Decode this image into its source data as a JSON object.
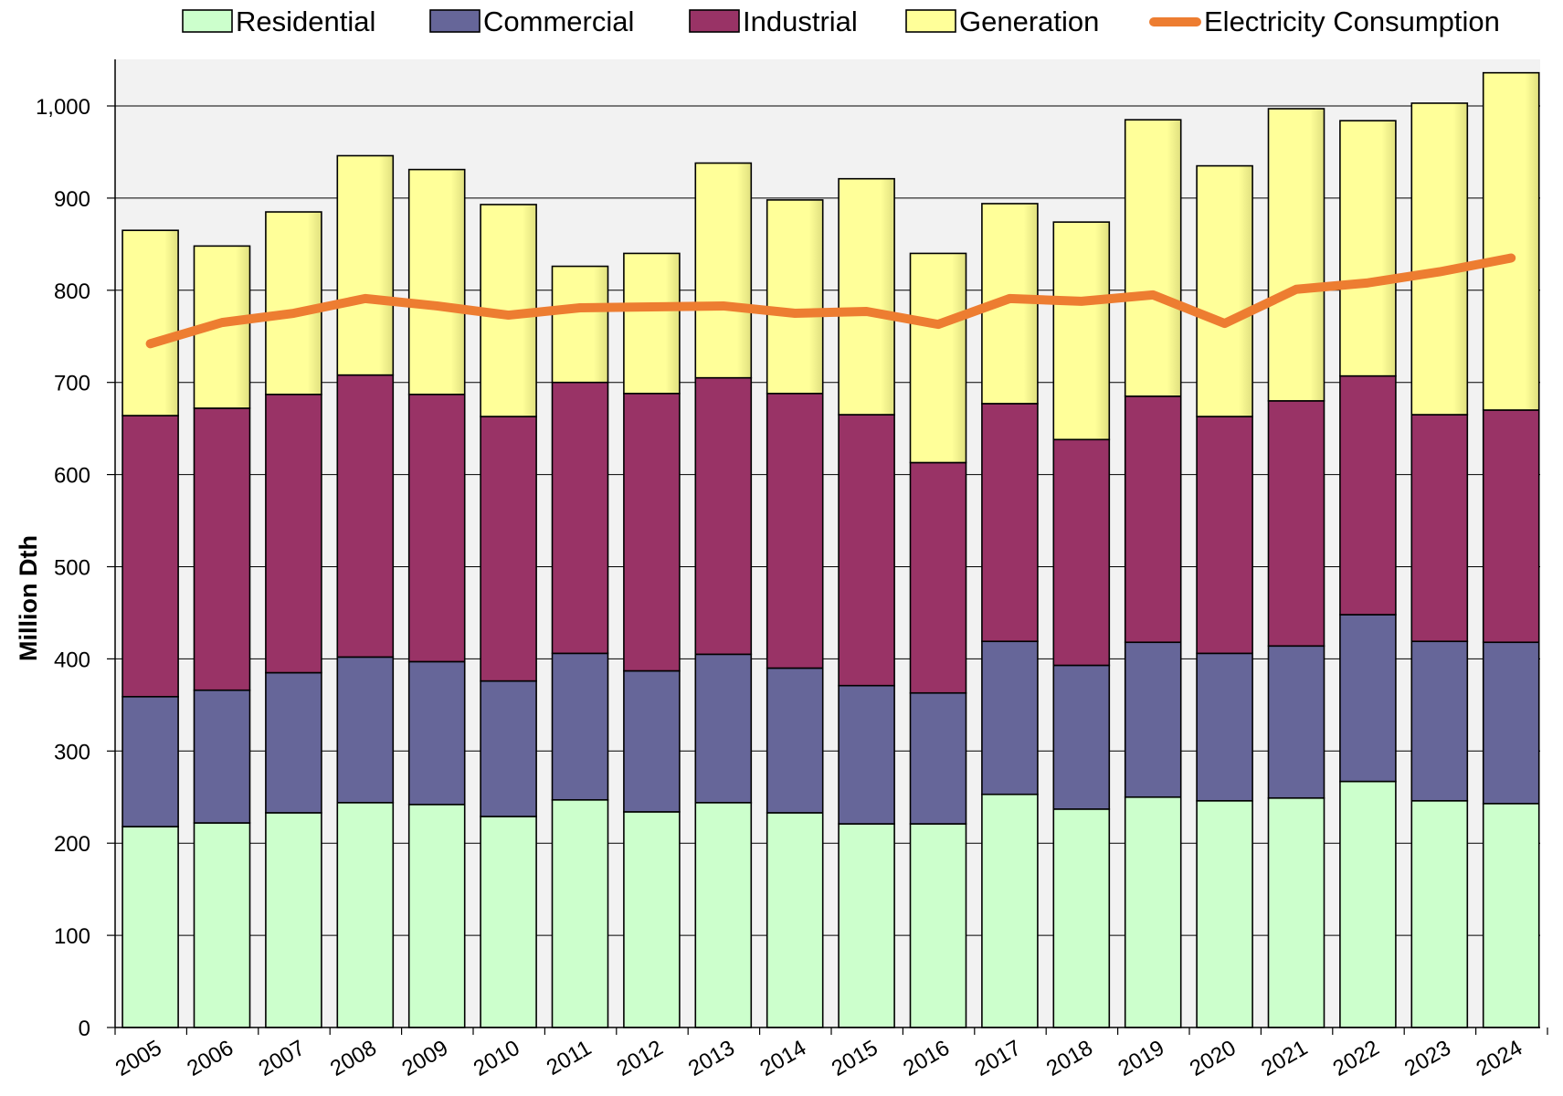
{
  "chart_data": {
    "type": "bar",
    "stacked": true,
    "title": "",
    "xlabel": "",
    "ylabel": "Million Dth",
    "ylim": [
      0,
      1050
    ],
    "yticks": [
      0,
      100,
      200,
      300,
      400,
      500,
      600,
      700,
      800,
      900,
      1000
    ],
    "ytick_labels": [
      "0",
      "100",
      "200",
      "300",
      "400",
      "500",
      "600",
      "700",
      "800",
      "900",
      "1,000"
    ],
    "grid": true,
    "legend_position": "top",
    "categories": [
      "2005",
      "2006",
      "2007",
      "2008",
      "2009",
      "2010",
      "2011",
      "2012",
      "2013",
      "2014",
      "2015",
      "2016",
      "2017",
      "2018",
      "2019",
      "2020",
      "2021",
      "2022",
      "2023",
      "2024"
    ],
    "series": [
      {
        "name": "Residential",
        "color": "#ccffcc",
        "values": [
          218,
          222,
          233,
          244,
          242,
          229,
          247,
          234,
          244,
          233,
          221,
          221,
          253,
          237,
          250,
          246,
          249,
          267,
          246,
          243
        ]
      },
      {
        "name": "Commercial",
        "color": "#666699",
        "values": [
          141,
          144,
          152,
          158,
          155,
          147,
          159,
          153,
          161,
          157,
          150,
          142,
          166,
          156,
          168,
          160,
          165,
          181,
          173,
          175
        ]
      },
      {
        "name": "Industrial",
        "color": "#993366",
        "values": [
          305,
          306,
          302,
          306,
          290,
          287,
          294,
          301,
          300,
          298,
          294,
          250,
          258,
          245,
          267,
          257,
          266,
          259,
          246,
          252
        ]
      },
      {
        "name": "Generation",
        "color": "#ffff99",
        "values": [
          201,
          176,
          198,
          238,
          244,
          230,
          126,
          152,
          233,
          210,
          256,
          227,
          217,
          236,
          300,
          272,
          317,
          277,
          338,
          366
        ]
      }
    ],
    "line": {
      "name": "Electricity Consumption",
      "color": "#ed7d31",
      "values": [
        742,
        765,
        775,
        791,
        783,
        773,
        781,
        782,
        783,
        775,
        777,
        763,
        791,
        788,
        795,
        764,
        801,
        808,
        820,
        835
      ]
    }
  }
}
